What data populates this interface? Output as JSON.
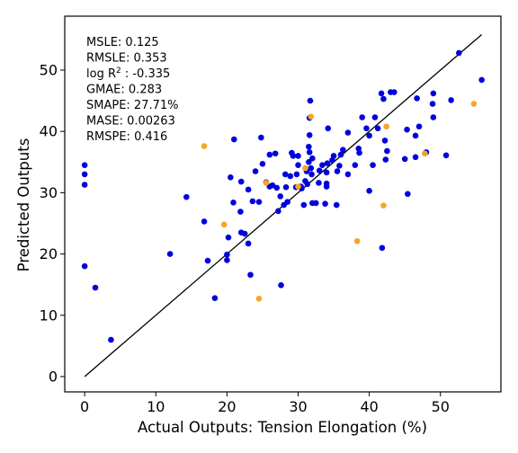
{
  "chart_data": {
    "type": "scatter",
    "title": "",
    "xlabel": "Actual Outputs: Tension Elongation (%)",
    "ylabel": "Predicted Outputs",
    "xlim": [
      -2.8,
      58.5
    ],
    "ylim": [
      -2.5,
      58.8
    ],
    "xticks": [
      0,
      10,
      20,
      30,
      40,
      50
    ],
    "yticks": [
      0,
      10,
      20,
      30,
      40,
      50
    ],
    "grid": false,
    "colors": {
      "primary": "#0000dd",
      "secondary": "#f5a623",
      "line": "#000000"
    },
    "reference_line": {
      "x": [
        0,
        55.8
      ],
      "y": [
        0,
        55.8
      ]
    },
    "metrics": [
      {
        "name": "MSLE",
        "value": "0.125"
      },
      {
        "name": "RMSLE",
        "value": "0.353"
      },
      {
        "name": "log R",
        "sup": "2",
        "value": " : -0.335"
      },
      {
        "name": "GMAE",
        "value": "0.283"
      },
      {
        "name": "SMAPE",
        "value": "27.71%"
      },
      {
        "name": "MASE",
        "value": "0.00263"
      },
      {
        "name": "RMSPE",
        "value": "0.416"
      }
    ],
    "series": [
      {
        "color": "#0000dd",
        "points": [
          [
            0.0,
            34.5
          ],
          [
            0.0,
            33.0
          ],
          [
            0.0,
            31.3
          ],
          [
            0.0,
            18.0
          ],
          [
            1.5,
            14.5
          ],
          [
            3.7,
            6.0
          ],
          [
            12.0,
            20.0
          ],
          [
            14.3,
            29.3
          ],
          [
            16.8,
            25.3
          ],
          [
            17.3,
            18.9
          ],
          [
            18.3,
            12.8
          ],
          [
            20.0,
            19.0
          ],
          [
            20.0,
            19.9
          ],
          [
            20.2,
            22.7
          ],
          [
            20.5,
            32.5
          ],
          [
            20.9,
            28.4
          ],
          [
            21.0,
            38.7
          ],
          [
            21.9,
            26.9
          ],
          [
            22.0,
            31.8
          ],
          [
            22.0,
            23.5
          ],
          [
            22.5,
            23.3
          ],
          [
            23.0,
            21.7
          ],
          [
            23.0,
            30.5
          ],
          [
            23.3,
            16.6
          ],
          [
            23.6,
            28.6
          ],
          [
            24.0,
            33.5
          ],
          [
            24.5,
            28.5
          ],
          [
            24.8,
            39.0
          ],
          [
            25.0,
            34.7
          ],
          [
            25.5,
            31.7
          ],
          [
            26.0,
            36.2
          ],
          [
            26.4,
            31.2
          ],
          [
            26.8,
            36.4
          ],
          [
            27.0,
            30.8
          ],
          [
            27.2,
            27.0
          ],
          [
            27.5,
            29.4
          ],
          [
            27.6,
            14.9
          ],
          [
            28.0,
            28.0
          ],
          [
            28.2,
            33.0
          ],
          [
            28.3,
            30.9
          ],
          [
            28.5,
            28.5
          ],
          [
            28.9,
            32.7
          ],
          [
            29.1,
            36.5
          ],
          [
            29.3,
            36.0
          ],
          [
            29.7,
            30.9
          ],
          [
            29.8,
            33.0
          ],
          [
            30.0,
            34.5
          ],
          [
            30.0,
            36.0
          ],
          [
            30.4,
            31.0
          ],
          [
            30.8,
            28.0
          ],
          [
            31.0,
            31.9
          ],
          [
            31.2,
            33.5
          ],
          [
            31.3,
            31.4
          ],
          [
            31.5,
            35.0
          ],
          [
            31.5,
            37.5
          ],
          [
            31.6,
            36.6
          ],
          [
            31.6,
            39.4
          ],
          [
            31.6,
            42.2
          ],
          [
            31.7,
            45.0
          ],
          [
            31.8,
            34.0
          ],
          [
            31.9,
            33.0
          ],
          [
            32.0,
            28.3
          ],
          [
            32.0,
            35.6
          ],
          [
            32.5,
            28.3
          ],
          [
            32.9,
            31.6
          ],
          [
            33.0,
            33.6
          ],
          [
            33.4,
            34.5
          ],
          [
            33.8,
            28.2
          ],
          [
            34.0,
            31.5
          ],
          [
            34.0,
            33.3
          ],
          [
            34.0,
            31.0
          ],
          [
            34.1,
            34.8
          ],
          [
            34.2,
            40.5
          ],
          [
            34.8,
            35.3
          ],
          [
            35.0,
            36.0
          ],
          [
            35.4,
            28.0
          ],
          [
            35.5,
            33.5
          ],
          [
            35.8,
            34.4
          ],
          [
            36.3,
            37.0
          ],
          [
            37.0,
            33.0
          ],
          [
            37.0,
            39.8
          ],
          [
            38.0,
            34.5
          ],
          [
            38.5,
            37.2
          ],
          [
            38.6,
            36.5
          ],
          [
            39.0,
            42.3
          ],
          [
            39.6,
            40.5
          ],
          [
            40.0,
            30.3
          ],
          [
            40.0,
            39.3
          ],
          [
            40.5,
            34.5
          ],
          [
            40.8,
            42.3
          ],
          [
            41.2,
            40.5
          ],
          [
            41.7,
            46.2
          ],
          [
            41.8,
            21.0
          ],
          [
            42.0,
            45.3
          ],
          [
            42.2,
            38.5
          ],
          [
            42.5,
            36.8
          ],
          [
            43.0,
            46.4
          ],
          [
            43.5,
            46.4
          ],
          [
            45.0,
            35.5
          ],
          [
            45.3,
            40.3
          ],
          [
            45.4,
            29.8
          ],
          [
            46.5,
            35.8
          ],
          [
            46.5,
            39.3
          ],
          [
            46.7,
            45.4
          ],
          [
            47.0,
            40.8
          ],
          [
            48.0,
            36.6
          ],
          [
            48.9,
            44.5
          ],
          [
            49.0,
            42.3
          ],
          [
            49.0,
            46.2
          ],
          [
            50.8,
            36.1
          ],
          [
            51.5,
            45.1
          ],
          [
            52.6,
            52.8
          ],
          [
            55.8,
            48.4
          ],
          [
            42.3,
            35.4
          ],
          [
            36.0,
            36.2
          ],
          [
            30.5,
            30.7
          ],
          [
            26.0,
            31.0
          ]
        ]
      },
      {
        "color": "#f5a623",
        "points": [
          [
            16.8,
            37.6
          ],
          [
            19.6,
            24.8
          ],
          [
            24.5,
            12.7
          ],
          [
            25.5,
            31.6
          ],
          [
            30.0,
            31.0
          ],
          [
            31.0,
            34.0
          ],
          [
            31.8,
            42.4
          ],
          [
            38.3,
            22.1
          ],
          [
            42.0,
            27.9
          ],
          [
            42.4,
            40.8
          ],
          [
            47.8,
            36.4
          ],
          [
            54.7,
            44.5
          ]
        ]
      }
    ]
  }
}
